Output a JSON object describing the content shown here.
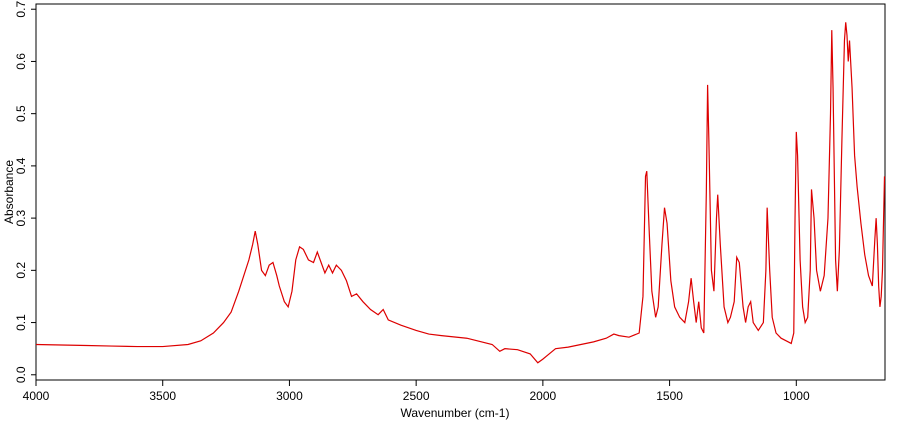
{
  "chart_data": {
    "type": "line",
    "x_label": "Wavenumber (cm-1)",
    "y_label": "Absorbance",
    "xlim": [
      4000,
      650
    ],
    "xticks": [
      4000,
      3500,
      3000,
      2500,
      2000,
      1500,
      1000
    ],
    "x_reversed": true,
    "ylim": [
      -0.01,
      0.71
    ],
    "yticks": [
      {
        "value": 0,
        "label": "0.0"
      },
      0.1,
      0.2,
      0.3,
      0.4,
      0.5,
      0.6,
      0.7
    ],
    "series": [
      {
        "color": "#dd0000",
        "x": [
          4000,
          3900,
          3800,
          3700,
          3600,
          3500,
          3400,
          3350,
          3300,
          3260,
          3230,
          3200,
          3180,
          3160,
          3145,
          3135,
          3125,
          3110,
          3095,
          3080,
          3065,
          3050,
          3040,
          3020,
          3005,
          2990,
          2975,
          2960,
          2945,
          2925,
          2905,
          2890,
          2875,
          2860,
          2845,
          2830,
          2815,
          2795,
          2775,
          2755,
          2735,
          2710,
          2680,
          2650,
          2630,
          2610,
          2560,
          2500,
          2450,
          2400,
          2300,
          2200,
          2170,
          2150,
          2100,
          2050,
          2020,
          2000,
          1980,
          1950,
          1900,
          1850,
          1800,
          1750,
          1720,
          1700,
          1660,
          1620,
          1605,
          1595,
          1590,
          1580,
          1570,
          1555,
          1545,
          1530,
          1520,
          1510,
          1495,
          1480,
          1460,
          1440,
          1425,
          1415,
          1405,
          1395,
          1385,
          1375,
          1365,
          1355,
          1350,
          1345,
          1335,
          1325,
          1315,
          1310,
          1300,
          1285,
          1270,
          1260,
          1245,
          1235,
          1225,
          1210,
          1200,
          1190,
          1180,
          1170,
          1150,
          1130,
          1120,
          1115,
          1105,
          1095,
          1080,
          1060,
          1040,
          1020,
          1010,
          1005,
          1000,
          995,
          985,
          975,
          965,
          955,
          945,
          940,
          930,
          920,
          905,
          890,
          875,
          865,
          860,
          855,
          845,
          838,
          830,
          820,
          810,
          805,
          800,
          795,
          790,
          780,
          770,
          760,
          745,
          730,
          715,
          700,
          690,
          685,
          680,
          675,
          670,
          665,
          660,
          652
        ],
        "values": [
          0.058,
          0.057,
          0.056,
          0.055,
          0.054,
          0.054,
          0.058,
          0.065,
          0.08,
          0.1,
          0.12,
          0.16,
          0.19,
          0.22,
          0.25,
          0.275,
          0.25,
          0.2,
          0.19,
          0.21,
          0.215,
          0.19,
          0.17,
          0.14,
          0.13,
          0.16,
          0.22,
          0.245,
          0.24,
          0.22,
          0.215,
          0.235,
          0.215,
          0.195,
          0.21,
          0.195,
          0.21,
          0.2,
          0.18,
          0.15,
          0.155,
          0.14,
          0.125,
          0.115,
          0.125,
          0.105,
          0.095,
          0.085,
          0.078,
          0.075,
          0.07,
          0.058,
          0.045,
          0.05,
          0.048,
          0.04,
          0.023,
          0.03,
          0.038,
          0.05,
          0.053,
          0.058,
          0.063,
          0.07,
          0.078,
          0.075,
          0.072,
          0.08,
          0.15,
          0.38,
          0.39,
          0.27,
          0.16,
          0.11,
          0.13,
          0.25,
          0.32,
          0.29,
          0.18,
          0.13,
          0.11,
          0.1,
          0.14,
          0.185,
          0.14,
          0.1,
          0.14,
          0.09,
          0.08,
          0.35,
          0.555,
          0.45,
          0.2,
          0.16,
          0.3,
          0.345,
          0.25,
          0.13,
          0.1,
          0.11,
          0.14,
          0.225,
          0.215,
          0.13,
          0.1,
          0.13,
          0.14,
          0.1,
          0.085,
          0.1,
          0.2,
          0.32,
          0.2,
          0.11,
          0.08,
          0.07,
          0.065,
          0.06,
          0.08,
          0.3,
          0.465,
          0.42,
          0.22,
          0.13,
          0.1,
          0.11,
          0.2,
          0.355,
          0.3,
          0.2,
          0.16,
          0.19,
          0.3,
          0.5,
          0.66,
          0.55,
          0.22,
          0.16,
          0.24,
          0.45,
          0.64,
          0.675,
          0.65,
          0.6,
          0.64,
          0.55,
          0.42,
          0.36,
          0.29,
          0.23,
          0.19,
          0.17,
          0.26,
          0.3,
          0.25,
          0.17,
          0.13,
          0.15,
          0.2,
          0.38
        ]
      }
    ]
  }
}
